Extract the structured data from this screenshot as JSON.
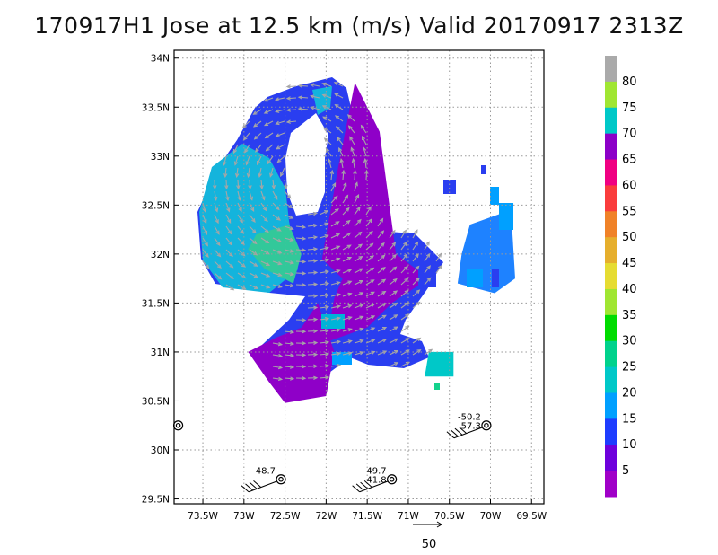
{
  "chart_data": {
    "type": "heatmap",
    "title": "170917H1 Jose at 12.5 km (m/s) Valid 20170917 2313Z",
    "xaxis": {
      "range": [
        -73.85,
        -69.35
      ],
      "ticks": [
        {
          "value": -73.5,
          "label": "73.5W"
        },
        {
          "value": -73,
          "label": "73W"
        },
        {
          "value": -72.5,
          "label": "72.5W"
        },
        {
          "value": -72,
          "label": "72W"
        },
        {
          "value": -71.5,
          "label": "71.5W"
        },
        {
          "value": -71,
          "label": "71W"
        },
        {
          "value": -70.5,
          "label": "70.5W"
        },
        {
          "value": -70,
          "label": "70W"
        },
        {
          "value": -69.5,
          "label": "69.5W"
        }
      ]
    },
    "yaxis": {
      "range": [
        29.45,
        34.08
      ],
      "ticks": [
        {
          "value": 29.5,
          "label": "29.5N"
        },
        {
          "value": 30,
          "label": "30N"
        },
        {
          "value": 30.5,
          "label": "30.5N"
        },
        {
          "value": 31,
          "label": "31N"
        },
        {
          "value": 31.5,
          "label": "31.5N"
        },
        {
          "value": 32,
          "label": "32N"
        },
        {
          "value": 32.5,
          "label": "32.5N"
        },
        {
          "value": 33,
          "label": "33N"
        },
        {
          "value": 33.5,
          "label": "33.5N"
        },
        {
          "value": 34,
          "label": "34N"
        }
      ]
    },
    "grid": true,
    "colorbar": {
      "labels": [
        "5",
        "10",
        "15",
        "20",
        "25",
        "30",
        "35",
        "40",
        "45",
        "50",
        "55",
        "60",
        "65",
        "70",
        "75",
        "80"
      ],
      "colors": [
        "#a000c8",
        "#6e00dc",
        "#1e3cff",
        "#00a0ff",
        "#00c8c8",
        "#00d28c",
        "#00dc00",
        "#a0e632",
        "#e6dc32",
        "#e6af2d",
        "#f08228",
        "#fa3c3c",
        "#f00082",
        "#8c00c8",
        "#00c8c8",
        "#a0e632",
        "#aaaaaa"
      ]
    },
    "regions": [
      {
        "name": "violet",
        "color": "#8f00c8",
        "polygon": [
          [
            -72.05,
            31.95
          ],
          [
            -71.85,
            32.9
          ],
          [
            -71.65,
            33.75
          ],
          [
            -71.35,
            33.25
          ],
          [
            -71.15,
            32.0
          ],
          [
            -70.75,
            31.75
          ],
          [
            -71.2,
            31.5
          ],
          [
            -71.5,
            31.25
          ],
          [
            -72.0,
            31.1
          ],
          [
            -71.9,
            31.55
          ],
          [
            -71.8,
            31.75
          ]
        ]
      },
      {
        "name": "violet-south",
        "color": "#8f00c8",
        "polygon": [
          [
            -72.1,
            31.5
          ],
          [
            -71.9,
            31.0
          ],
          [
            -72.0,
            30.55
          ],
          [
            -72.5,
            30.48
          ],
          [
            -72.7,
            30.7
          ],
          [
            -72.95,
            31.0
          ],
          [
            -72.6,
            31.15
          ],
          [
            -72.3,
            31.25
          ]
        ]
      },
      {
        "name": "green-core",
        "color": "#32c89a",
        "polygon": [
          [
            -72.85,
            32.2
          ],
          [
            -72.45,
            32.3
          ],
          [
            -72.3,
            32.0
          ],
          [
            -72.4,
            31.7
          ],
          [
            -72.75,
            31.85
          ],
          [
            -72.95,
            32.05
          ]
        ]
      },
      {
        "name": "cyan-blob",
        "color": "#00c8c8",
        "polygon": [
          [
            -70.75,
            31.0
          ],
          [
            -70.45,
            31.0
          ],
          [
            -70.45,
            30.75
          ],
          [
            -70.8,
            30.75
          ]
        ]
      },
      {
        "name": "east-blue",
        "color": "#1e82ff",
        "polygon": [
          [
            -70.25,
            32.3
          ],
          [
            -69.75,
            32.45
          ],
          [
            -69.7,
            31.75
          ],
          [
            -69.95,
            31.6
          ],
          [
            -70.4,
            31.7
          ],
          [
            -70.35,
            32.0
          ]
        ]
      }
    ],
    "stations": [
      {
        "lon": -73.8,
        "lat": 30.25,
        "labels": []
      },
      {
        "lon": -72.55,
        "lat": 29.7,
        "labels": [
          "-48.7"
        ]
      },
      {
        "lon": -71.2,
        "lat": 29.7,
        "labels": [
          "-49.7",
          "41.8"
        ]
      },
      {
        "lon": -70.05,
        "lat": 30.25,
        "labels": [
          "-50.2",
          "57.3"
        ]
      }
    ],
    "scale_vector": {
      "label": "50"
    }
  }
}
